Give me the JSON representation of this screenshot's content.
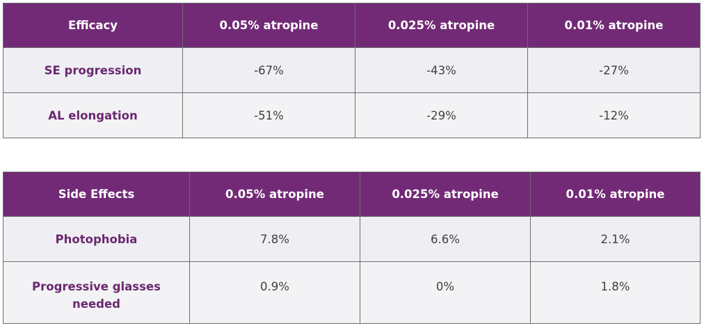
{
  "efficacy_table": {
    "headers": [
      "Efficacy",
      "0.05% atropine",
      "0.025% atropine",
      "0.01% atropine"
    ],
    "rows": [
      {
        "label": "SE progression",
        "values": [
          "-67%",
          "-43%",
          "-27%"
        ]
      },
      {
        "label": "AL elongation",
        "values": [
          "-51%",
          "-29%",
          "-12%"
        ]
      }
    ]
  },
  "side_effects_table": {
    "headers": [
      "Side Effects",
      "0.05% atropine",
      "0.025% atropine",
      "0.01% atropine"
    ],
    "rows": [
      {
        "label": "Photophobia",
        "values": [
          "7.8%",
          "6.6%",
          "2.1%"
        ]
      },
      {
        "label": "Progressive glasses needed",
        "values": [
          "0.9%",
          "0%",
          "1.8%"
        ]
      }
    ]
  },
  "colors": {
    "header_bg": "#722a76",
    "header_text": "#ffffff",
    "row_label_text": "#6a2870",
    "cell_text": "#404040",
    "row_bg": "#efeff3",
    "border": "#6b6b6b"
  }
}
